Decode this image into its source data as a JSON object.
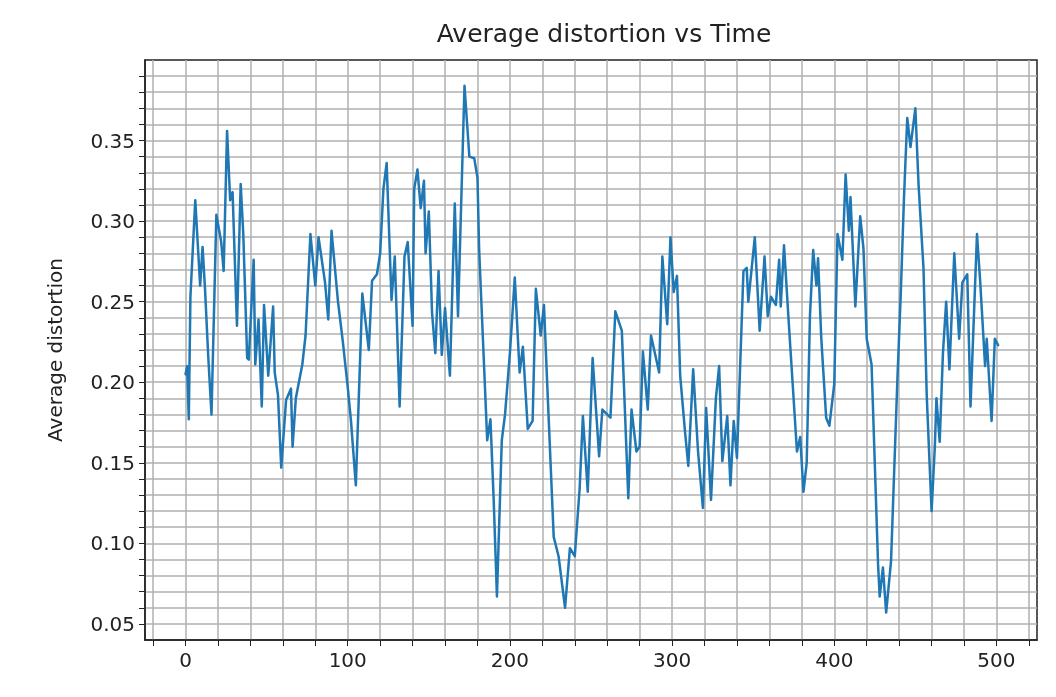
{
  "chart_data": {
    "type": "line",
    "title": "Average distortion vs Time",
    "ylabel": "Average distortion",
    "xlim": [
      -25,
      525
    ],
    "ylim": [
      0.04,
      0.4
    ],
    "xticks": [
      {
        "value": -20,
        "label": null
      },
      0,
      {
        "value": 20,
        "label": null
      },
      {
        "value": 40,
        "label": null
      },
      {
        "value": 60,
        "label": null
      },
      {
        "value": 80,
        "label": null
      },
      100,
      {
        "value": 120,
        "label": null
      },
      {
        "value": 140,
        "label": null
      },
      {
        "value": 160,
        "label": null
      },
      {
        "value": 180,
        "label": null
      },
      200,
      {
        "value": 220,
        "label": null
      },
      {
        "value": 240,
        "label": null
      },
      {
        "value": 260,
        "label": null
      },
      {
        "value": 280,
        "label": null
      },
      300,
      {
        "value": 320,
        "label": null
      },
      {
        "value": 340,
        "label": null
      },
      {
        "value": 360,
        "label": null
      },
      {
        "value": 380,
        "label": null
      },
      400,
      {
        "value": 420,
        "label": null
      },
      {
        "value": 440,
        "label": null
      },
      {
        "value": 460,
        "label": null
      },
      {
        "value": 480,
        "label": null
      },
      500,
      {
        "value": 520,
        "label": null
      }
    ],
    "yticks": [
      {
        "value": 0.05,
        "label": "0.05"
      },
      {
        "value": 0.06,
        "label": null
      },
      {
        "value": 0.07,
        "label": null
      },
      {
        "value": 0.08,
        "label": null
      },
      {
        "value": 0.09,
        "label": null
      },
      {
        "value": 0.1,
        "label": "0.10"
      },
      {
        "value": 0.11,
        "label": null
      },
      {
        "value": 0.12,
        "label": null
      },
      {
        "value": 0.13,
        "label": null
      },
      {
        "value": 0.14,
        "label": null
      },
      {
        "value": 0.15,
        "label": "0.15"
      },
      {
        "value": 0.16,
        "label": null
      },
      {
        "value": 0.17,
        "label": null
      },
      {
        "value": 0.18,
        "label": null
      },
      {
        "value": 0.19,
        "label": null
      },
      {
        "value": 0.2,
        "label": "0.20"
      },
      {
        "value": 0.21,
        "label": null
      },
      {
        "value": 0.22,
        "label": null
      },
      {
        "value": 0.23,
        "label": null
      },
      {
        "value": 0.24,
        "label": null
      },
      {
        "value": 0.25,
        "label": "0.25"
      },
      {
        "value": 0.26,
        "label": null
      },
      {
        "value": 0.27,
        "label": null
      },
      {
        "value": 0.28,
        "label": null
      },
      {
        "value": 0.29,
        "label": null
      },
      {
        "value": 0.3,
        "label": "0.30"
      },
      {
        "value": 0.31,
        "label": null
      },
      {
        "value": 0.32,
        "label": null
      },
      {
        "value": 0.33,
        "label": null
      },
      {
        "value": 0.34,
        "label": null
      },
      {
        "value": 0.35,
        "label": "0.35"
      },
      {
        "value": 0.36,
        "label": null
      },
      {
        "value": 0.37,
        "label": null
      },
      {
        "value": 0.38,
        "label": null
      },
      {
        "value": 0.39,
        "label": null
      }
    ],
    "grid": true,
    "marker": "none",
    "line_style": "solid",
    "series": [
      {
        "color": "#1f77b4",
        "x": [
          0,
          1,
          2,
          3,
          6,
          9,
          10.5,
          12,
          14,
          16,
          19,
          22,
          23.5,
          25.6,
          27.5,
          29,
          31.7,
          34,
          35.6,
          38,
          39,
          42,
          43,
          45,
          47,
          48.4,
          51,
          54,
          55,
          57,
          59,
          62,
          65,
          66,
          68,
          72,
          74,
          77,
          80,
          82,
          86,
          88,
          90,
          94,
          97,
          100,
          102,
          105,
          109,
          113,
          115,
          118,
          120,
          122,
          124,
          127,
          129,
          132,
          135,
          137,
          140,
          141,
          143,
          145,
          147,
          148,
          150,
          152,
          154,
          156,
          158,
          160,
          163,
          166,
          168,
          172,
          175,
          178,
          180,
          181,
          186,
          188,
          190,
          192,
          195,
          197,
          200,
          203,
          206,
          208,
          211,
          214,
          216,
          219,
          221,
          223,
          227,
          230,
          234,
          237,
          240,
          243,
          245,
          248,
          251,
          255,
          257,
          262,
          265,
          269,
          273,
          275,
          278,
          280,
          282,
          285,
          287,
          292,
          294,
          297,
          299,
          301,
          303,
          305,
          308,
          310,
          313,
          316,
          319,
          321,
          324,
          327,
          329,
          331,
          334,
          336,
          338,
          340,
          344,
          346,
          347,
          351,
          354,
          357,
          359,
          361,
          364,
          366,
          367,
          369,
          372,
          377,
          379,
          381,
          383,
          385,
          387,
          389,
          390,
          392,
          395,
          397,
          400,
          402,
          405,
          407,
          409,
          410,
          413,
          416,
          418,
          420,
          423,
          427,
          428,
          430,
          432,
          435,
          439,
          441,
          443,
          445,
          447,
          450,
          452,
          455,
          457,
          460,
          462,
          463,
          465,
          467,
          469,
          471,
          474,
          477,
          479,
          482,
          484,
          488,
          490,
          493,
          494,
          497,
          499,
          501
        ],
        "values": [
          0.205,
          0.21,
          0.177,
          0.253,
          0.313,
          0.26,
          0.284,
          0.258,
          0.216,
          0.18,
          0.304,
          0.287,
          0.269,
          0.356,
          0.313,
          0.318,
          0.235,
          0.323,
          0.292,
          0.215,
          0.214,
          0.276,
          0.211,
          0.239,
          0.185,
          0.248,
          0.204,
          0.247,
          0.206,
          0.192,
          0.147,
          0.189,
          0.196,
          0.16,
          0.19,
          0.211,
          0.229,
          0.292,
          0.26,
          0.29,
          0.262,
          0.239,
          0.294,
          0.25,
          0.225,
          0.197,
          0.176,
          0.136,
          0.255,
          0.22,
          0.263,
          0.267,
          0.28,
          0.32,
          0.336,
          0.251,
          0.278,
          0.185,
          0.278,
          0.287,
          0.235,
          0.32,
          0.332,
          0.308,
          0.325,
          0.28,
          0.306,
          0.243,
          0.218,
          0.269,
          0.217,
          0.246,
          0.204,
          0.311,
          0.241,
          0.384,
          0.34,
          0.339,
          0.327,
          0.283,
          0.164,
          0.177,
          0.127,
          0.067,
          0.164,
          0.18,
          0.218,
          0.265,
          0.206,
          0.222,
          0.171,
          0.176,
          0.258,
          0.229,
          0.248,
          0.199,
          0.104,
          0.092,
          0.06,
          0.097,
          0.092,
          0.134,
          0.179,
          0.132,
          0.215,
          0.154,
          0.183,
          0.178,
          0.244,
          0.232,
          0.128,
          0.183,
          0.157,
          0.16,
          0.219,
          0.183,
          0.229,
          0.206,
          0.278,
          0.236,
          0.29,
          0.256,
          0.266,
          0.204,
          0.169,
          0.148,
          0.208,
          0.157,
          0.122,
          0.184,
          0.127,
          0.19,
          0.21,
          0.151,
          0.179,
          0.136,
          0.176,
          0.153,
          0.269,
          0.271,
          0.25,
          0.29,
          0.232,
          0.278,
          0.241,
          0.253,
          0.248,
          0.276,
          0.247,
          0.285,
          0.236,
          0.157,
          0.166,
          0.132,
          0.15,
          0.241,
          0.282,
          0.26,
          0.277,
          0.227,
          0.178,
          0.173,
          0.199,
          0.292,
          0.276,
          0.329,
          0.294,
          0.315,
          0.247,
          0.303,
          0.283,
          0.227,
          0.211,
          0.087,
          0.067,
          0.085,
          0.057,
          0.089,
          0.204,
          0.255,
          0.315,
          0.364,
          0.346,
          0.37,
          0.322,
          0.271,
          0.192,
          0.12,
          0.16,
          0.19,
          0.163,
          0.218,
          0.25,
          0.208,
          0.28,
          0.227,
          0.262,
          0.267,
          0.185,
          0.292,
          0.262,
          0.21,
          0.227,
          0.176,
          0.227,
          0.223
        ]
      }
    ]
  }
}
